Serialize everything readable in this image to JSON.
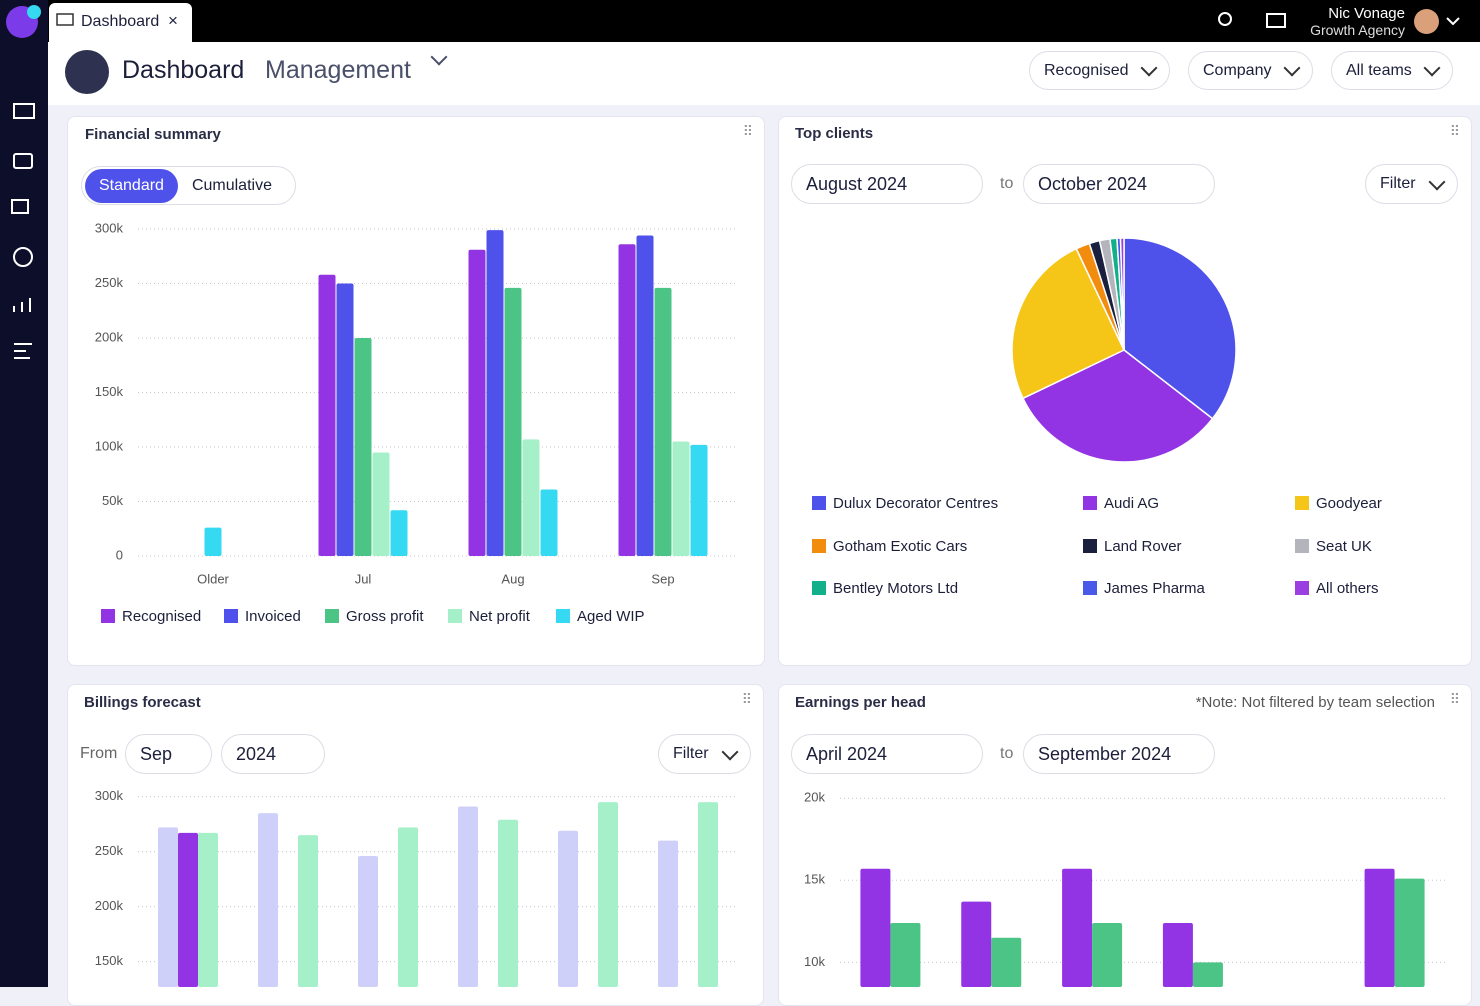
{
  "app": {
    "tab": "Dashboard",
    "user_name": "Nic Vonage",
    "user_org": "Growth Agency"
  },
  "header": {
    "title": "Dashboard",
    "view": "Management",
    "filters": [
      "Recognised",
      "Company",
      "All teams"
    ]
  },
  "widgets": [
    {
      "toggle": [
        "Standard",
        "Cumulative"
      ]
    },
    {
      "from": "August 2024",
      "to_word": "to",
      "to": "October 2024",
      "filter": "Filter"
    },
    {
      "from_word": "From",
      "month": "Sep",
      "year": "2024",
      "filter": "Filter"
    },
    {
      "note": "*Note: Not filtered by team selection",
      "from": "April 2024",
      "to_word": "to",
      "to": "September 2024"
    }
  ],
  "chart_data": [
    {
      "type": "bar",
      "title": "Financial summary",
      "categories": [
        "Older",
        "Jul",
        "Aug",
        "Sep"
      ],
      "series": [
        {
          "name": "Recognised",
          "color": "#9234e3",
          "values": [
            null,
            258000,
            281000,
            286000
          ]
        },
        {
          "name": "Invoiced",
          "color": "#4f52ea",
          "values": [
            null,
            250000,
            299000,
            294000
          ]
        },
        {
          "name": "Gross profit",
          "color": "#4cc485",
          "values": [
            null,
            200000,
            246000,
            246000
          ]
        },
        {
          "name": "Net profit",
          "color": "#a6f0c9",
          "values": [
            null,
            95000,
            107000,
            105000
          ]
        },
        {
          "name": "Aged WIP",
          "color": "#35d9f2",
          "values": [
            26000,
            42000,
            61000,
            102000
          ]
        }
      ],
      "ylim": [
        0,
        300000
      ],
      "yticks": [
        0,
        {
          "value": 50000,
          "label": "50k"
        },
        {
          "value": 100000,
          "label": "100k"
        },
        {
          "value": 150000,
          "label": "150k"
        },
        {
          "value": 200000,
          "label": "200k"
        },
        {
          "value": 250000,
          "label": "250k"
        },
        {
          "value": 300000,
          "label": "300k"
        }
      ],
      "grid": true
    },
    {
      "type": "pie",
      "title": "Top clients",
      "categories": [
        "Dulux Decorator Centres",
        "Audi AG",
        "Goodyear",
        "Gotham Exotic Cars",
        "Land Rover",
        "Seat UK",
        "Bentley Motors Ltd",
        "James Pharma",
        "All others"
      ],
      "values": [
        35.5,
        32.4,
        25.1,
        2,
        1.5,
        1.5,
        1,
        0.5,
        0.5
      ],
      "colors": [
        "#4f52ea",
        "#9234e3",
        "#f5c518",
        "#f28c0f",
        "#1a1f3d",
        "#b4b4bc",
        "#12b08a",
        "#4a5ae8",
        "#9a3fe0"
      ]
    },
    {
      "type": "bar",
      "title": "Billings forecast",
      "categories": [
        null,
        null,
        null,
        null,
        null,
        null
      ],
      "series": [
        {
          "color": "#cfd0fa",
          "values": [
            272000,
            285000,
            246000,
            291000,
            269000,
            260000
          ]
        },
        {
          "color": "#9234e3",
          "values": [
            267000,
            null,
            null,
            null,
            null,
            null
          ]
        },
        {
          "color": "#a6f0c9",
          "values": [
            267000,
            265000,
            272000,
            279000,
            295000,
            295000
          ]
        }
      ],
      "ylim": [
        127000,
        306000
      ],
      "yticks": [
        {
          "value": 150000,
          "label": "150k"
        },
        {
          "value": 200000,
          "label": "200k"
        },
        {
          "value": 250000,
          "label": "250k"
        },
        {
          "value": 300000,
          "label": "300k"
        }
      ],
      "grid": true
    },
    {
      "type": "bar",
      "title": "Earnings per head",
      "categories": [
        null,
        null,
        null,
        null,
        null,
        null
      ],
      "series": [
        {
          "color": "#9234e3",
          "values": [
            15700,
            13700,
            15700,
            12400,
            null,
            15700
          ]
        },
        {
          "color": "#4cc485",
          "values": [
            12400,
            11500,
            12400,
            10000,
            null,
            15100
          ]
        }
      ],
      "ylim": [
        8500,
        20500
      ],
      "yticks": [
        {
          "value": 10000,
          "label": "10k"
        },
        {
          "value": 15000,
          "label": "15k"
        },
        {
          "value": 20000,
          "label": "20k"
        }
      ],
      "grid": true
    }
  ]
}
